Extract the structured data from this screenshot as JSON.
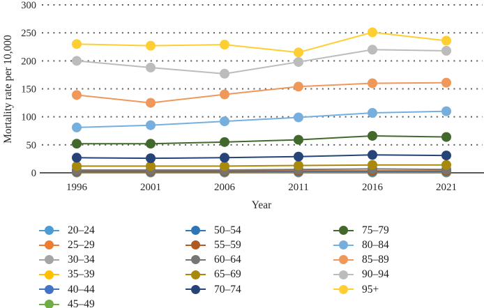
{
  "chart_data": {
    "type": "line",
    "xlabel": "Year",
    "ylabel": "Mortality rate per 10,000",
    "x": [
      1996,
      2001,
      2006,
      2011,
      2016,
      2021
    ],
    "ylim": [
      0,
      300
    ],
    "yticks": [
      0,
      50,
      100,
      150,
      200,
      250,
      300
    ],
    "grid": "horizontal dotted gridlines at each y tick, solid axis line at 0",
    "legend_position": "bottom",
    "legend_columns": [
      6,
      5,
      5
    ],
    "axis_color": "#595959",
    "grid_color": "#595959",
    "marker": "filled circle",
    "series": [
      {
        "name": "20–24",
        "color": "#4D9BD5",
        "values": [
          0.5,
          0.5,
          0.5,
          0.5,
          0.5,
          0.5
        ]
      },
      {
        "name": "25–29",
        "color": "#ED7D31",
        "values": [
          0.6,
          0.6,
          0.6,
          0.7,
          0.7,
          0.7
        ]
      },
      {
        "name": "30–34",
        "color": "#A5A5A5",
        "values": [
          0.8,
          0.8,
          0.8,
          0.9,
          0.9,
          0.9
        ]
      },
      {
        "name": "35–39",
        "color": "#FFC000",
        "values": [
          1.0,
          1.0,
          1.0,
          1.1,
          1.1,
          1.1
        ]
      },
      {
        "name": "40–44",
        "color": "#4472C4",
        "values": [
          1.2,
          1.2,
          1.3,
          1.4,
          1.4,
          1.4
        ]
      },
      {
        "name": "45–49",
        "color": "#70AD47",
        "values": [
          1.5,
          1.5,
          1.6,
          1.8,
          1.8,
          1.8
        ]
      },
      {
        "name": "50–54",
        "color": "#2E75B6",
        "values": [
          2.0,
          2.0,
          2.0,
          2.5,
          2.5,
          2.5
        ]
      },
      {
        "name": "55–59",
        "color": "#AE5A21",
        "values": [
          3.0,
          3.0,
          3.0,
          3.5,
          3.5,
          3.5
        ]
      },
      {
        "name": "60–64",
        "color": "#757575",
        "values": [
          5,
          5,
          5,
          6,
          7,
          6
        ]
      },
      {
        "name": "65–69",
        "color": "#A8880D",
        "values": [
          12,
          12,
          12,
          13,
          14,
          14
        ]
      },
      {
        "name": "70–74",
        "color": "#264478",
        "values": [
          27,
          26,
          27,
          29,
          32,
          31
        ]
      },
      {
        "name": "75–79",
        "color": "#43682B",
        "values": [
          52,
          52,
          55,
          59,
          66,
          64
        ]
      },
      {
        "name": "80–84",
        "color": "#76AFDD",
        "values": [
          81,
          85,
          92,
          99,
          107,
          110
        ]
      },
      {
        "name": "85–89",
        "color": "#F0975A",
        "values": [
          139,
          125,
          140,
          154,
          160,
          161
        ]
      },
      {
        "name": "90–94",
        "color": "#BCBCBC",
        "values": [
          200,
          188,
          177,
          198,
          220,
          218
        ]
      },
      {
        "name": "95+",
        "color": "#FFCE33",
        "values": [
          230,
          227,
          229,
          215,
          251,
          236
        ]
      }
    ]
  }
}
